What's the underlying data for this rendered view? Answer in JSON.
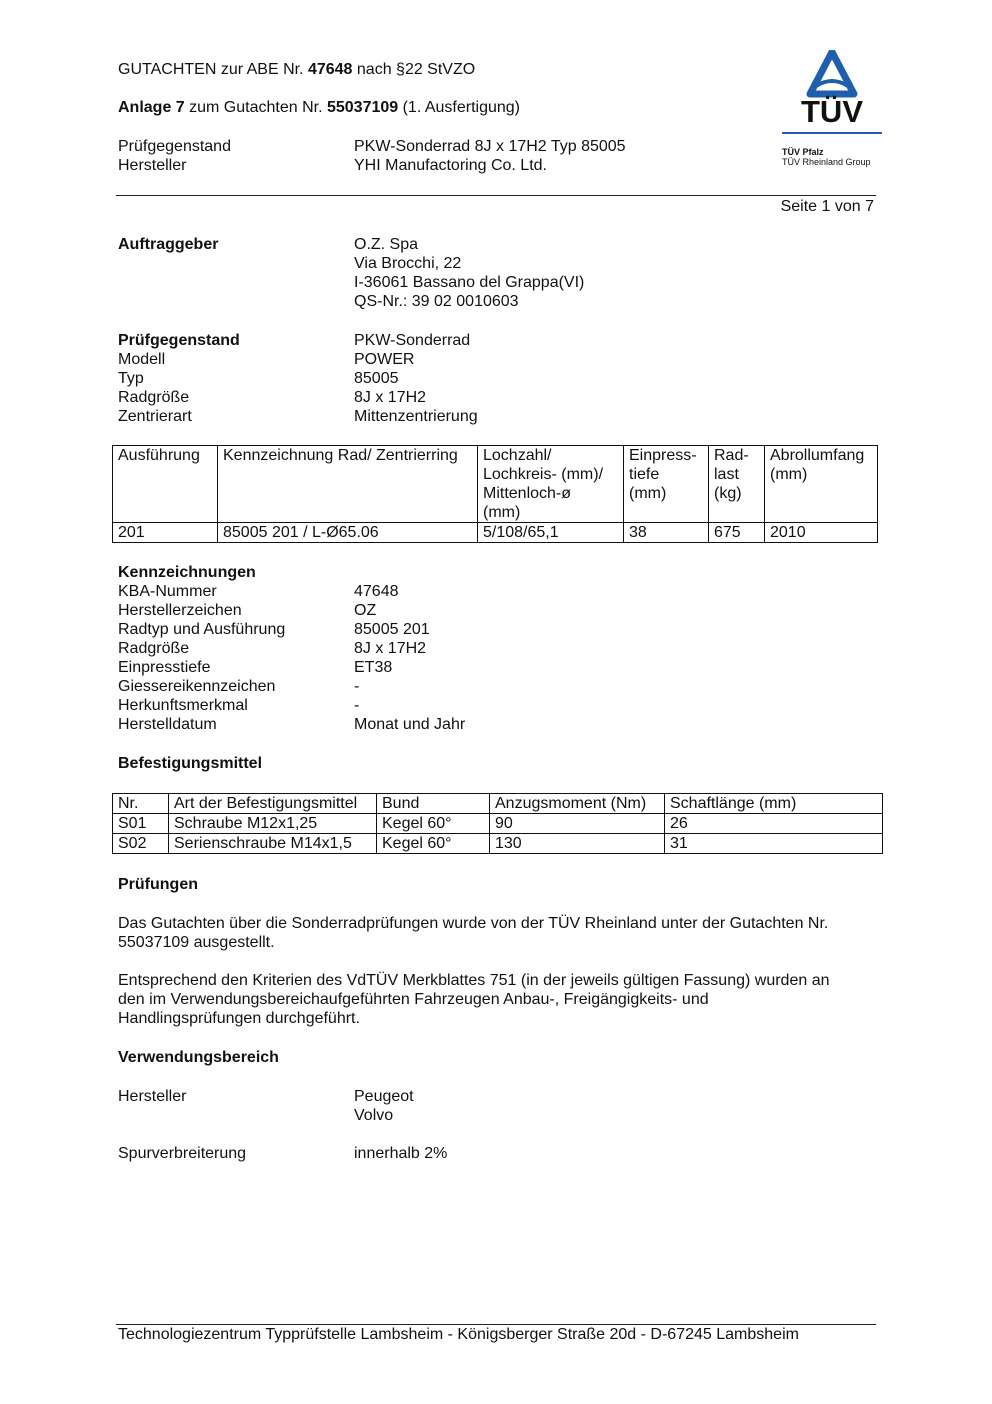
{
  "header": {
    "title_pre": "GUTACHTEN zur ABE Nr. ",
    "title_num": "47648",
    "title_post": " nach §22 StVZO",
    "anlage_label": "Anlage 7",
    "anlage_mid": " zum Gutachten Nr. ",
    "anlage_num": "55037109",
    "anlage_post": " (1. Ausfertigung)",
    "rows": [
      {
        "label": "Prüfgegenstand",
        "value": "PKW-Sonderrad 8J x 17H2 Typ 85005"
      },
      {
        "label": "Hersteller",
        "value": "YHI Manufactoring Co. Ltd."
      }
    ],
    "page": "Seite 1 von 7"
  },
  "logo": {
    "text": "TÜV",
    "line1": "TÜV Pfalz",
    "line2": "TÜV Rheinland Group",
    "color": "#1f5fae"
  },
  "auftraggeber": {
    "label": "Auftraggeber",
    "lines": [
      "O.Z. Spa",
      "Via Brocchi, 22",
      "I-36061 Bassano del Grappa(VI)",
      "QS-Nr.: 39 02 0010603"
    ]
  },
  "pruefgegenstand": {
    "labels": [
      "Prüfgegenstand",
      "Modell",
      "Typ",
      "Radgröße",
      "Zentrierart"
    ],
    "values": [
      "PKW-Sonderrad",
      "POWER",
      "85005",
      "8J x 17H2",
      "Mittenzentrierung"
    ]
  },
  "table1": {
    "headers": [
      [
        "Ausführung"
      ],
      [
        "Kennzeichnung Rad/ Zentrierring"
      ],
      [
        "Lochzahl/",
        "Lochkreis- (mm)/",
        "Mittenloch-ø",
        "(mm)"
      ],
      [
        "Einpress-",
        "tiefe",
        "(mm)"
      ],
      [
        "Rad-",
        "last",
        "(kg)"
      ],
      [
        "Abrollumfang",
        "(mm)"
      ]
    ],
    "rows": [
      [
        "201",
        "85005 201 / L-Ø65.06",
        "5/108/65,1",
        "38",
        "675",
        "2010"
      ]
    ]
  },
  "kennzeichnungen": {
    "title": "Kennzeichnungen",
    "labels": [
      "KBA-Nummer",
      "Herstellerzeichen",
      "Radtyp und Ausführung",
      "Radgröße",
      "Einpresstiefe",
      "Giessereikennzeichen",
      "Herkunftsmerkmal",
      "Herstelldatum"
    ],
    "values": [
      "47648",
      "OZ",
      "85005 201",
      "8J x 17H2",
      "ET38",
      "-",
      "-",
      "Monat und Jahr"
    ]
  },
  "befestigung": {
    "title": "Befestigungsmittel",
    "headers": [
      "Nr.",
      "Art der Befestigungsmittel",
      "Bund",
      "Anzugsmoment (Nm)",
      "Schaftlänge (mm)"
    ],
    "rows": [
      [
        "S01",
        "Schraube M12x1,25",
        "Kegel 60°",
        "90",
        "26"
      ],
      [
        "S02",
        "Serienschraube M14x1,5",
        "Kegel 60°",
        "130",
        "31"
      ]
    ]
  },
  "pruefungen": {
    "title": "Prüfungen",
    "p1": [
      "Das Gutachten über die Sonderradprüfungen wurde von der TÜV Rheinland unter der Gutachten Nr.",
      "55037109 ausgestellt."
    ],
    "p2": [
      "Entsprechend den Kriterien des VdTÜV Merkblattes 751 (in der jeweils gültigen Fassung) wurden an",
      "den im Verwendungsbereichaufgeführten Fahrzeugen Anbau-, Freigängigkeits- und",
      "Handlingsprüfungen durchgeführt."
    ]
  },
  "verwendung": {
    "title": "Verwendungsbereich",
    "hersteller_label": "Hersteller",
    "hersteller": [
      "Peugeot",
      "Volvo"
    ],
    "spur_label": "Spurverbreiterung",
    "spur": "innerhalb 2%"
  },
  "footer": "Technologiezentrum Typprüfstelle Lambsheim - Königsberger Straße 20d - D-67245 Lambsheim"
}
